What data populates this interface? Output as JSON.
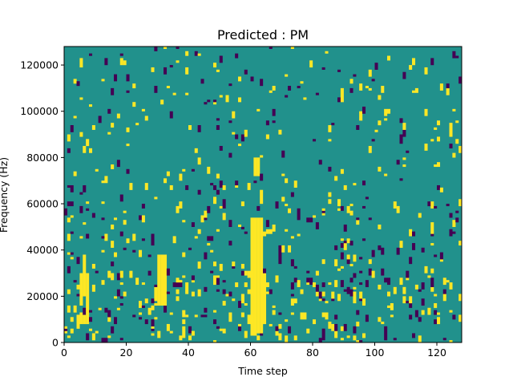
{
  "chart_data": {
    "type": "heatmap",
    "title": "Predicted : PM",
    "xlabel": "Time step",
    "ylabel": "Frequency (Hz)",
    "xlim": [
      0,
      128
    ],
    "ylim": [
      0,
      128000
    ],
    "xticks": [
      0,
      20,
      40,
      60,
      80,
      100,
      120
    ],
    "yticks": [
      0,
      20000,
      40000,
      60000,
      80000,
      100000,
      120000
    ],
    "xtick_labels": [
      "0",
      "20",
      "40",
      "60",
      "80",
      "100",
      "120"
    ],
    "ytick_labels": [
      "0",
      "20000",
      "40000",
      "60000",
      "80000",
      "100000",
      "120000"
    ],
    "n_time_steps": 128,
    "n_freq_bins": 128,
    "freq_bin_hz": 1000,
    "colormap": "viridis",
    "colors": {
      "low": "#440154",
      "mid": "#21918c",
      "high": "#fde725"
    },
    "background_level": "mid",
    "high_blocks": [
      {
        "t": [
          60,
          61
        ],
        "f": [
          3000,
          54000
        ]
      },
      {
        "t": [
          62,
          63
        ],
        "f": [
          4000,
          54000
        ]
      },
      {
        "t": [
          64,
          64
        ],
        "f": [
          8000,
          30000
        ]
      },
      {
        "t": [
          59,
          59
        ],
        "f": [
          8000,
          12000
        ]
      },
      {
        "t": [
          30,
          32
        ],
        "f": [
          16000,
          38000
        ]
      },
      {
        "t": [
          29,
          29
        ],
        "f": [
          18000,
          24000
        ]
      },
      {
        "t": [
          4,
          6
        ],
        "f": [
          8000,
          12000
        ]
      },
      {
        "t": [
          7,
          7
        ],
        "f": [
          8000,
          30000
        ]
      },
      {
        "t": [
          5,
          5
        ],
        "f": [
          16000,
          30000
        ]
      },
      {
        "t": [
          6,
          6
        ],
        "f": [
          20000,
          38000
        ]
      },
      {
        "t": [
          63,
          63
        ],
        "f": [
          60000,
          66000
        ]
      },
      {
        "t": [
          61,
          62
        ],
        "f": [
          72000,
          80000
        ]
      }
    ],
    "low_blocks": [
      {
        "t": [
          35,
          37
        ],
        "f": [
          24000,
          26000
        ]
      },
      {
        "t": [
          69,
          69
        ],
        "f": [
          34000,
          42000
        ]
      },
      {
        "t": [
          12,
          13
        ],
        "f": [
          0,
          2000
        ]
      },
      {
        "t": [
          78,
          79
        ],
        "f": [
          52000,
          54000
        ]
      },
      {
        "t": [
          46,
          47
        ],
        "f": [
          44000,
          46000
        ]
      },
      {
        "t": [
          78,
          79
        ],
        "f": [
          26000,
          28000
        ]
      }
    ],
    "sparse_seed": 7
  }
}
